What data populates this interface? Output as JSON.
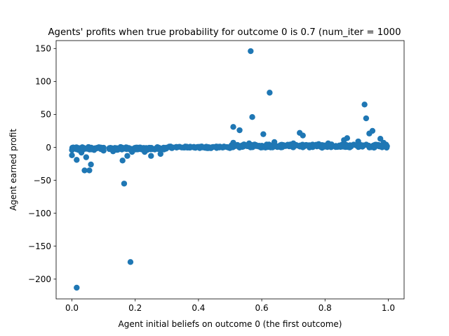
{
  "chart_data": {
    "type": "scatter",
    "title": "Agents' profits when true probability for outcome 0 is 0.7 (num_iter = 1000",
    "xlabel": "Agent initial beliefs on outcome 0 (the first outcome)",
    "ylabel": "Agent earned profit",
    "xlim": [
      -0.05,
      1.05
    ],
    "ylim": [
      -230,
      162
    ],
    "xticks": [
      0.0,
      0.2,
      0.4,
      0.6,
      0.8,
      1.0
    ],
    "xtick_labels": [
      "0.0",
      "0.2",
      "0.4",
      "0.6",
      "0.8",
      "1.0"
    ],
    "yticks": [
      -200,
      -150,
      -100,
      -50,
      0,
      50,
      100,
      150
    ],
    "ytick_labels": [
      "−200",
      "−150",
      "−100",
      "−50",
      "0",
      "50",
      "100",
      "150"
    ],
    "grid": false,
    "color": "#1f77b4",
    "points": [
      {
        "x": 0.565,
        "y": 146
      },
      {
        "x": 0.625,
        "y": 83
      },
      {
        "x": 0.925,
        "y": 65
      },
      {
        "x": 0.57,
        "y": 46
      },
      {
        "x": 0.93,
        "y": 44
      },
      {
        "x": 0.51,
        "y": 31
      },
      {
        "x": 0.53,
        "y": 26
      },
      {
        "x": 0.95,
        "y": 25
      },
      {
        "x": 0.72,
        "y": 22
      },
      {
        "x": 0.94,
        "y": 21
      },
      {
        "x": 0.605,
        "y": 20
      },
      {
        "x": 0.73,
        "y": 18
      },
      {
        "x": 0.87,
        "y": 14
      },
      {
        "x": 0.975,
        "y": 13
      },
      {
        "x": 0.86,
        "y": 11
      },
      {
        "x": 0.64,
        "y": 8
      },
      {
        "x": 0.905,
        "y": 9
      },
      {
        "x": 0.985,
        "y": 7
      },
      {
        "x": 0.51,
        "y": 7
      },
      {
        "x": 0.56,
        "y": 6
      },
      {
        "x": 0.7,
        "y": 6
      },
      {
        "x": 0.78,
        "y": 5
      },
      {
        "x": 0.81,
        "y": 6
      },
      {
        "x": 0.99,
        "y": 4
      },
      {
        "x": 0.0,
        "y": -12
      },
      {
        "x": 0.015,
        "y": -19
      },
      {
        "x": 0.04,
        "y": -35
      },
      {
        "x": 0.055,
        "y": -35
      },
      {
        "x": 0.06,
        "y": -26
      },
      {
        "x": 0.045,
        "y": -15
      },
      {
        "x": 0.16,
        "y": -20
      },
      {
        "x": 0.175,
        "y": -13
      },
      {
        "x": 0.165,
        "y": -55
      },
      {
        "x": 0.185,
        "y": -174
      },
      {
        "x": 0.015,
        "y": -213
      },
      {
        "x": 0.25,
        "y": -13
      },
      {
        "x": 0.28,
        "y": -10
      },
      {
        "x": 0.19,
        "y": -7
      },
      {
        "x": 0.13,
        "y": -6
      },
      {
        "x": 0.1,
        "y": -5
      },
      {
        "x": 0.03,
        "y": -8
      },
      {
        "x": 0.07,
        "y": -4
      },
      {
        "x": 0.23,
        "y": -7
      }
    ]
  }
}
